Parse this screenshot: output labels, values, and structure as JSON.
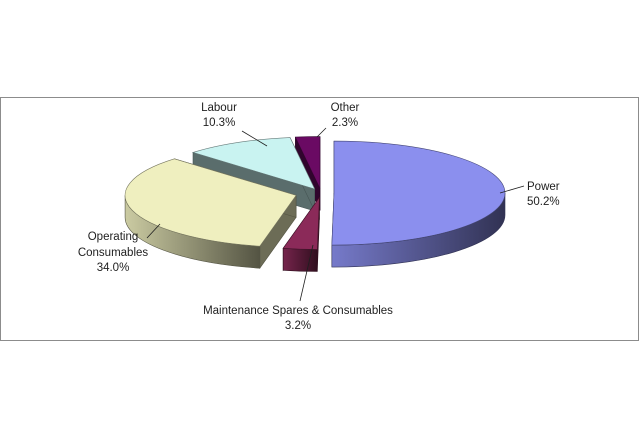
{
  "chart_data": {
    "type": "pie",
    "title": "",
    "slices": [
      {
        "label": "Power",
        "value": 50.2,
        "value_label": "50.2%",
        "color": "#8b8fee"
      },
      {
        "label": "Maintenance Spares & Consumables",
        "value": 3.2,
        "value_label": "3.2%",
        "color": "#8b2a59"
      },
      {
        "label": "Operating Consumables",
        "value": 34.0,
        "value_label": "34.0%",
        "color": "#efefbf"
      },
      {
        "label": "Labour",
        "value": 10.3,
        "value_label": "10.3%",
        "color": "#c9f3f1"
      },
      {
        "label": "Other",
        "value": 2.3,
        "value_label": "2.3%",
        "color": "#6a0a63"
      }
    ],
    "style": "3d-exploded",
    "legend": "none"
  }
}
